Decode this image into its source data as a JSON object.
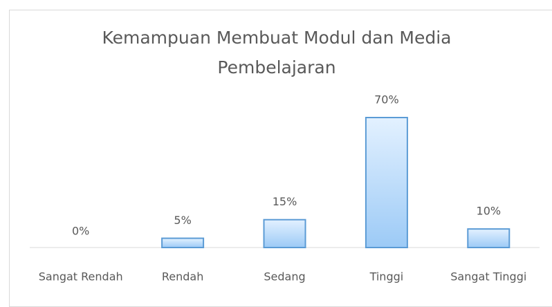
{
  "chart_data": {
    "type": "bar",
    "title": "Kemampuan Membuat Modul dan Media Pembelajaran",
    "categories": [
      "Sangat Rendah",
      "Rendah",
      "Sedang",
      "Tinggi",
      "Sangat Tinggi"
    ],
    "values": [
      0,
      5,
      15,
      70,
      10
    ],
    "value_labels": [
      "0%",
      "5%",
      "15%",
      "70%",
      "10%"
    ],
    "color": "#5b9bd5"
  }
}
